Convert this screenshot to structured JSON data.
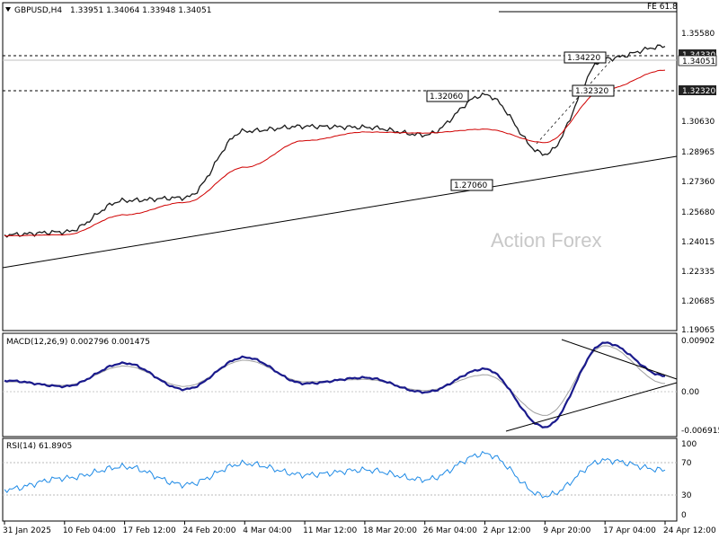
{
  "header": {
    "symbol_label": "GBPUSD,H4",
    "ohlc_label": "1.33951 1.34064 1.33948 1.34051",
    "fe_label": "FE 61.8"
  },
  "watermark": "Action Forex",
  "price_axis": {
    "ticks": [
      "1.35580",
      "1.34330",
      "1.34051",
      "1.32320",
      "1.30630",
      "1.28965",
      "1.27360",
      "1.25680",
      "1.24015",
      "1.22335",
      "1.20685",
      "1.19065"
    ],
    "marker_current": "1.34051",
    "marker_level_high": "1.34330",
    "marker_level_low": "1.32320"
  },
  "annotations": [
    {
      "text": "1.34220"
    },
    {
      "text": "1.32060"
    },
    {
      "text": "1.32320"
    },
    {
      "text": "1.27060"
    }
  ],
  "macd_panel": {
    "label": "MACD(12,26,9) 0.002796 0.001475",
    "ticks": [
      "0.00902",
      "0.00",
      "-0.006915"
    ]
  },
  "rsi_panel": {
    "label": "RSI(14) 61.8905",
    "ticks": [
      "100",
      "70",
      "30",
      "0"
    ]
  },
  "time_axis": {
    "ticks": [
      "31 Jan 2025",
      "10 Feb 04:00",
      "17 Feb 12:00",
      "24 Feb 20:00",
      "4 Mar 04:00",
      "11 Mar 12:00",
      "18 Mar 20:00",
      "26 Mar 04:00",
      "2 Apr 12:00",
      "9 Apr 20:00",
      "17 Apr 04:00",
      "24 Apr 12:00"
    ]
  },
  "chart_data": [
    {
      "type": "line",
      "panel": "price",
      "x": [
        "31 Jan 2025",
        "10 Feb 04:00",
        "17 Feb 12:00",
        "24 Feb 20:00",
        "4 Mar 04:00",
        "11 Mar 12:00",
        "18 Mar 20:00",
        "26 Mar 04:00",
        "2 Apr 12:00",
        "9 Apr 20:00",
        "17 Apr 04:00",
        "24 Apr 12:00"
      ],
      "series": [
        {
          "values": [
            1.2405,
            1.242,
            1.2585,
            1.26,
            1.295,
            1.2975,
            1.297,
            1.293,
            1.314,
            1.283,
            1.333,
            1.3395
          ]
        },
        {
          "values": [
            1.24,
            1.2405,
            1.251,
            1.2575,
            1.276,
            1.29,
            1.2945,
            1.294,
            1.296,
            1.289,
            1.317,
            1.327
          ]
        }
      ],
      "ylim": [
        1.19065,
        1.362
      ]
    },
    {
      "type": "line",
      "panel": "macd",
      "x": [
        "31 Jan 2025",
        "10 Feb 04:00",
        "17 Feb 12:00",
        "24 Feb 20:00",
        "4 Mar 04:00",
        "11 Mar 12:00",
        "18 Mar 20:00",
        "26 Mar 04:00",
        "2 Apr 12:00",
        "9 Apr 20:00",
        "17 Apr 04:00",
        "24 Apr 12:00"
      ],
      "series": [
        {
          "values": [
            0.002,
            0.001,
            0.005,
            0.0005,
            0.006,
            0.0015,
            0.0025,
            0.0,
            0.004,
            -0.006,
            0.0085,
            0.0028
          ]
        },
        {
          "values": [
            0.0018,
            0.0012,
            0.0045,
            0.001,
            0.0055,
            0.0018,
            0.0022,
            0.0003,
            0.003,
            -0.004,
            0.008,
            0.0015
          ]
        }
      ],
      "ylim": [
        -0.0075,
        0.01
      ]
    },
    {
      "type": "line",
      "panel": "rsi",
      "x": [
        "31 Jan 2025",
        "10 Feb 04:00",
        "17 Feb 12:00",
        "24 Feb 20:00",
        "4 Mar 04:00",
        "11 Mar 12:00",
        "18 Mar 20:00",
        "26 Mar 04:00",
        "2 Apr 12:00",
        "9 Apr 20:00",
        "17 Apr 04:00",
        "24 Apr 12:00"
      ],
      "series": [
        {
          "values": [
            38,
            52,
            66,
            44,
            70,
            56,
            62,
            50,
            82,
            30,
            74,
            62
          ]
        }
      ],
      "ylim": [
        0,
        100
      ]
    }
  ]
}
